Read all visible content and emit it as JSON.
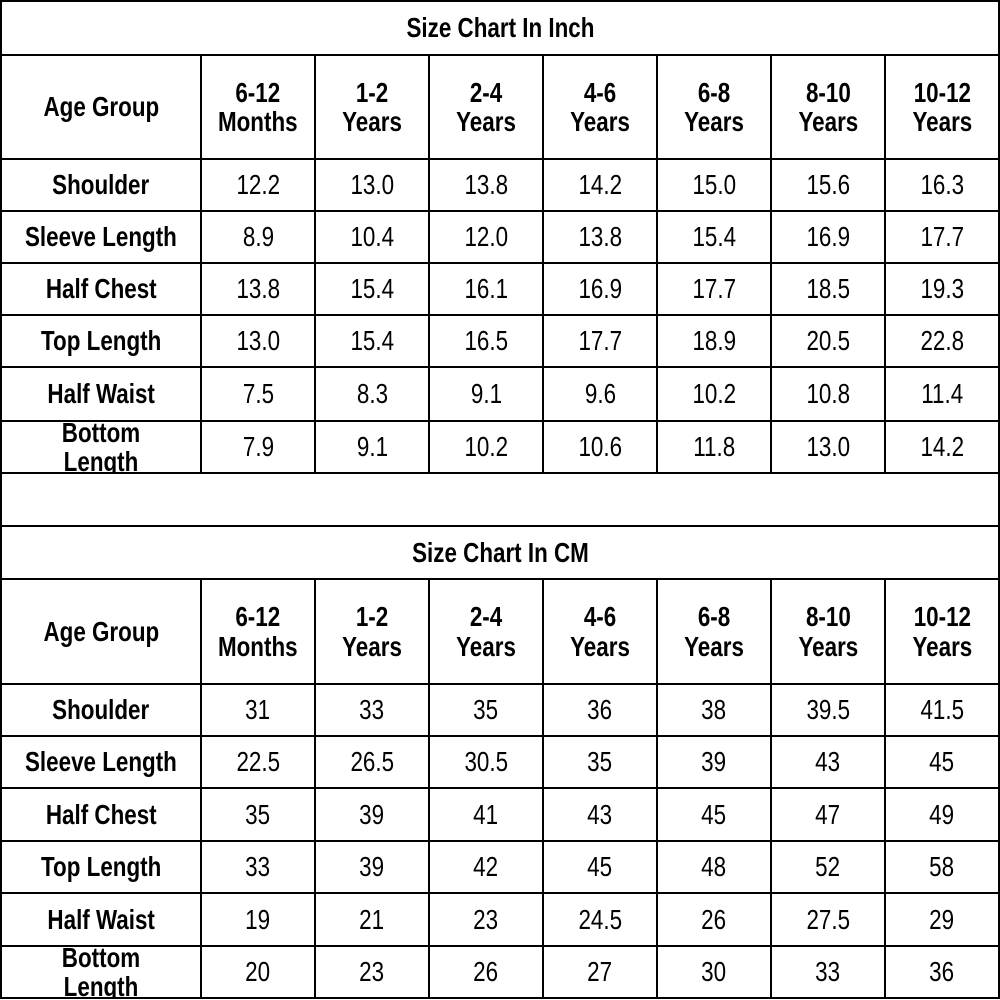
{
  "tables": [
    {
      "title": "Size Chart In Inch",
      "header": [
        "Age Group",
        "6-12\nMonths",
        "1-2 Years",
        "2-4 Years",
        "4-6 Years",
        "6-8 Years",
        "8-10\nYears",
        "10-12\nYears"
      ],
      "rows": [
        [
          "Shoulder",
          "12.2",
          "13.0",
          "13.8",
          "14.2",
          "15.0",
          "15.6",
          "16.3"
        ],
        [
          "Sleeve Length",
          "8.9",
          "10.4",
          "12.0",
          "13.8",
          "15.4",
          "16.9",
          "17.7"
        ],
        [
          "Half Chest",
          "13.8",
          "15.4",
          "16.1",
          "16.9",
          "17.7",
          "18.5",
          "19.3"
        ],
        [
          "Top Length",
          "13.0",
          "15.4",
          "16.5",
          "17.7",
          "18.9",
          "20.5",
          "22.8"
        ],
        [
          "Half Waist",
          "7.5",
          "8.3",
          "9.1",
          "9.6",
          "10.2",
          "10.8",
          "11.4"
        ],
        [
          "Bottom Length",
          "7.9",
          "9.1",
          "10.2",
          "10.6",
          "11.8",
          "13.0",
          "14.2"
        ]
      ]
    },
    {
      "title": "Size Chart In CM",
      "header": [
        "Age Group",
        "6-12\nMonths",
        "1-2 Years",
        "2-4 Years",
        "4-6 Years",
        "6-8 Years",
        "8-10\nYears",
        "10-12\nYears"
      ],
      "rows": [
        [
          "Shoulder",
          "31",
          "33",
          "35",
          "36",
          "38",
          "39.5",
          "41.5"
        ],
        [
          "Sleeve Length",
          "22.5",
          "26.5",
          "30.5",
          "35",
          "39",
          "43",
          "45"
        ],
        [
          "Half Chest",
          "35",
          "39",
          "41",
          "43",
          "45",
          "47",
          "49"
        ],
        [
          "Top Length",
          "33",
          "39",
          "42",
          "45",
          "48",
          "52",
          "58"
        ],
        [
          "Half Waist",
          "19",
          "21",
          "23",
          "24.5",
          "26",
          "27.5",
          "29"
        ],
        [
          "Bottom Length",
          "20",
          "23",
          "26",
          "27",
          "30",
          "33",
          "36"
        ]
      ]
    }
  ]
}
